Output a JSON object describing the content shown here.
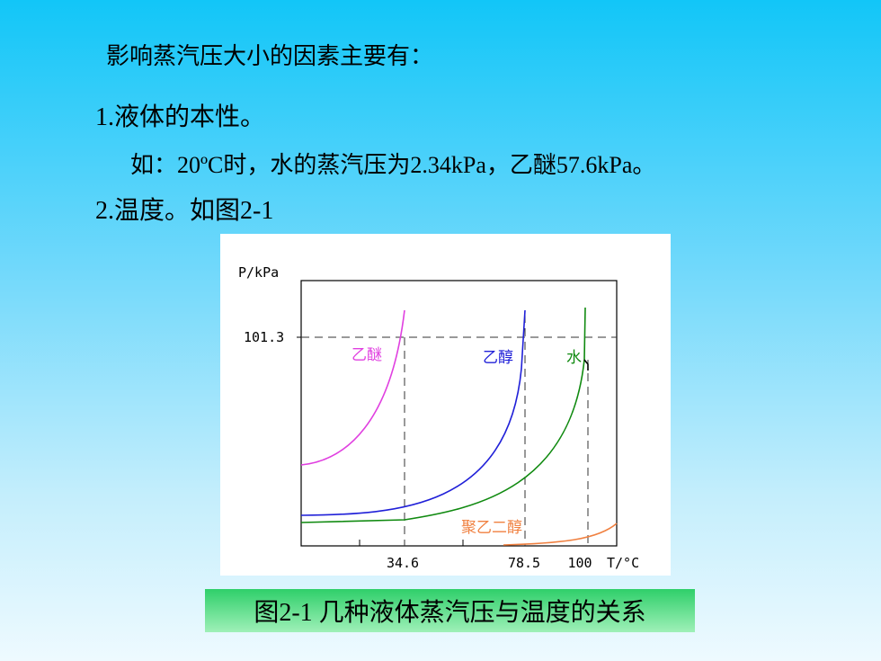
{
  "slide": {
    "lines": [
      "影响蒸汽压大小的因素主要有：",
      "1.液体的本性。",
      "如：20ºC时，水的蒸汽压为2.34kPa，乙醚57.6kPa。",
      "2.温度。如图2-1"
    ],
    "figure": {
      "y_axis_label": "P/kPa",
      "y_tick": "101.3",
      "x_ticks": [
        "34.6",
        "78.5",
        "100"
      ],
      "x_axis_label": "T/°C",
      "curve_labels": [
        "乙醚",
        "乙醇",
        "水",
        "聚乙二醇"
      ],
      "caption": "图2-1 几种液体蒸汽压与温度的关系"
    }
  }
}
